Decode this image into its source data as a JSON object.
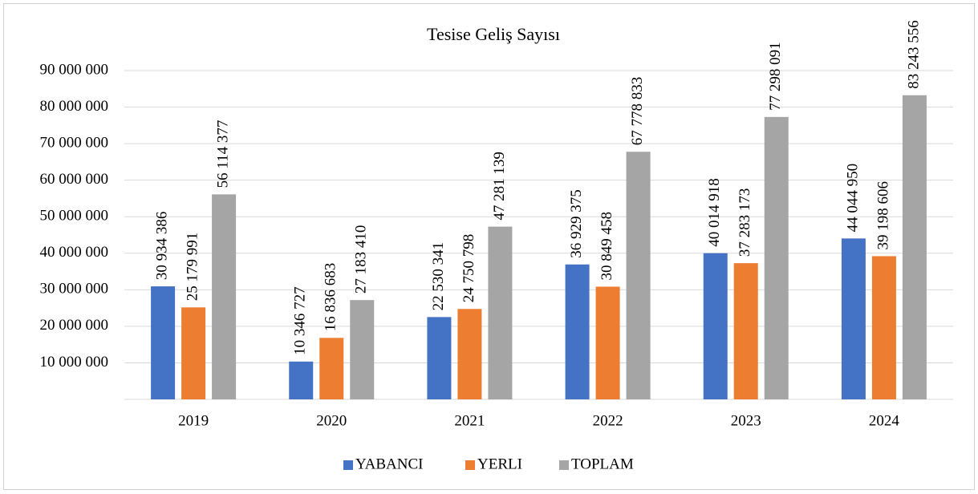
{
  "chart_data": {
    "type": "bar",
    "title": "Tesise Geliş Sayısı",
    "categories": [
      "2019",
      "2020",
      "2021",
      "2022",
      "2023",
      "2024"
    ],
    "series": [
      {
        "name": "YABANCI",
        "color": "#4472c4",
        "values": [
          30934386,
          10346727,
          22530341,
          36929375,
          40014918,
          44044950
        ],
        "value_labels": [
          "30 934 386",
          "10 346 727",
          "22 530 341",
          "36 929 375",
          "40 014 918",
          "44 044 950"
        ]
      },
      {
        "name": "YERLI",
        "color": "#ed7d31",
        "values": [
          25179991,
          16836683,
          24750798,
          30849458,
          37283173,
          39198606
        ],
        "value_labels": [
          "25 179 991",
          "16 836 683",
          "24 750 798",
          "30 849 458",
          "37 283 173",
          "39 198 606"
        ]
      },
      {
        "name": "TOPLAM",
        "color": "#a5a5a5",
        "values": [
          56114377,
          27183410,
          47281139,
          67778833,
          77298091,
          83243556
        ],
        "value_labels": [
          "56 114 377",
          "27 183 410",
          "47 281 139",
          "67 778 833",
          "77 298 091",
          "83 243 556"
        ]
      }
    ],
    "ylim": [
      0,
      90000000
    ],
    "yticks": [
      {
        "value": 10000000,
        "label": "10 000 000"
      },
      {
        "value": 20000000,
        "label": "20 000 000"
      },
      {
        "value": 30000000,
        "label": "30 000 000"
      },
      {
        "value": 40000000,
        "label": "40 000 000"
      },
      {
        "value": 50000000,
        "label": "50 000 000"
      },
      {
        "value": 60000000,
        "label": "60 000 000"
      },
      {
        "value": 70000000,
        "label": "70 000 000"
      },
      {
        "value": 80000000,
        "label": "80 000 000"
      },
      {
        "value": 90000000,
        "label": "90 000 000"
      }
    ],
    "grid": true,
    "legend": "bottom"
  }
}
